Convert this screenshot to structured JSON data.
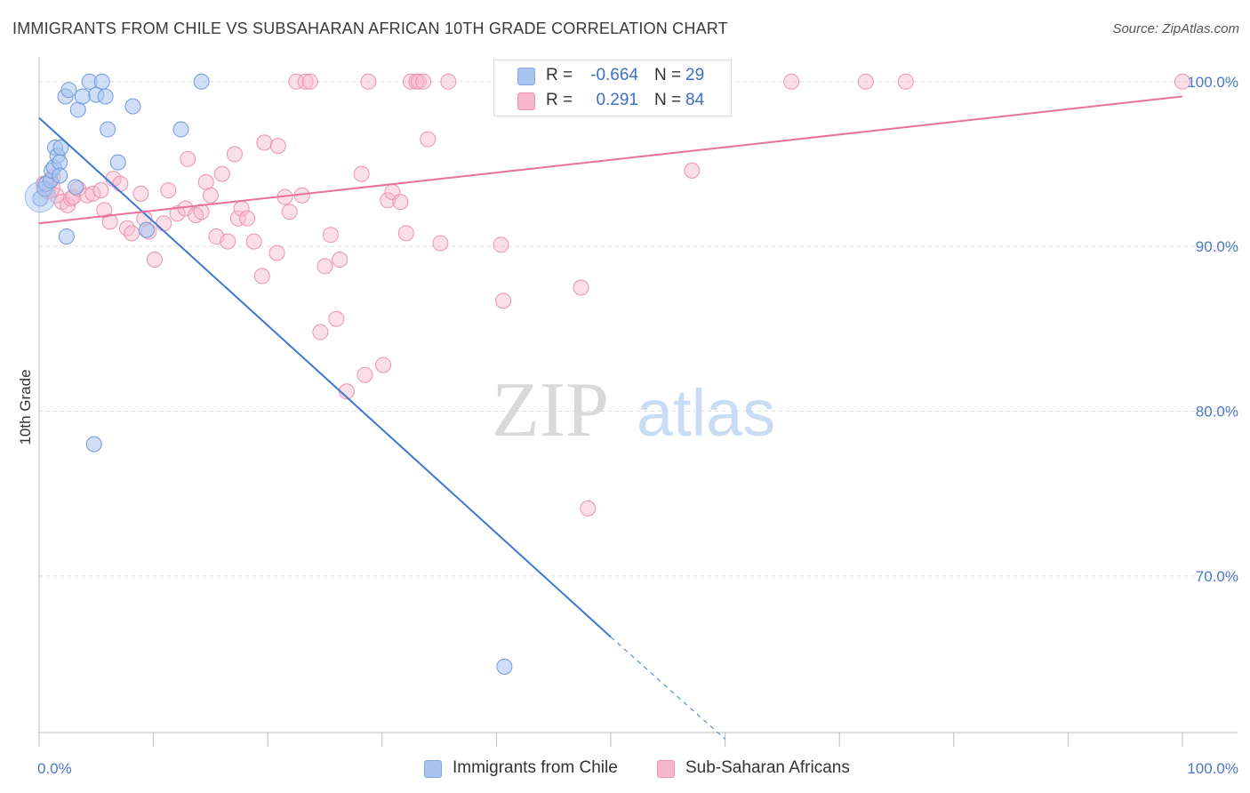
{
  "header": {
    "title": "IMMIGRANTS FROM CHILE VS SUBSAHARAN AFRICAN 10TH GRADE CORRELATION CHART",
    "source": "Source: ZipAtlas.com"
  },
  "watermark": {
    "part1": "ZIP",
    "part2": "atlas"
  },
  "legend": {
    "rows": [
      {
        "r_label": "R =",
        "r_value": "-0.664",
        "n_label": "N =",
        "n_value": "29",
        "color": "#a9c4f0"
      },
      {
        "r_label": "R =",
        "r_value": "0.291",
        "n_label": "N =",
        "n_value": "84",
        "color": "#f7b7cb"
      }
    ]
  },
  "bottom_legend": {
    "items": [
      {
        "label": "Immigrants from Chile",
        "color": "#a9c4f0"
      },
      {
        "label": "Sub-Saharan Africans",
        "color": "#f7b7cb"
      }
    ]
  },
  "colors": {
    "blue_line": "#3a78d4",
    "pink_line": "#e8709a",
    "blue_fill": "#a9c4f0",
    "pink_fill": "#f7b7cb",
    "axis_text": "#4a78c8"
  },
  "chart_data": {
    "type": "scatter",
    "title": "IMMIGRANTS FROM CHILE VS SUBSAHARAN AFRICAN 10TH GRADE CORRELATION CHART",
    "xlabel": "",
    "ylabel": "10th Grade",
    "xlim": [
      0,
      100
    ],
    "ylim": [
      60.5,
      101.5
    ],
    "x_ticks": [
      "0.0%",
      "100.0%"
    ],
    "y_ticks": [
      {
        "value": 100,
        "label": "100.0%"
      },
      {
        "value": 90,
        "label": "90.0%"
      },
      {
        "value": 80,
        "label": "80.0%"
      },
      {
        "value": 70,
        "label": "70.0%"
      }
    ],
    "grid": true,
    "series": [
      {
        "name": "Immigrants from Chile",
        "color": "#a9c4f0",
        "points": [
          [
            0.1,
            92.9
          ],
          [
            0.5,
            93.5
          ],
          [
            0.6,
            93.8
          ],
          [
            1.0,
            94.0
          ],
          [
            1.1,
            94.6
          ],
          [
            1.3,
            94.8
          ],
          [
            1.4,
            96.0
          ],
          [
            1.6,
            95.5
          ],
          [
            1.8,
            95.1
          ],
          [
            1.8,
            94.3
          ],
          [
            1.9,
            96.0
          ],
          [
            2.3,
            99.1
          ],
          [
            2.4,
            90.6
          ],
          [
            2.6,
            99.5
          ],
          [
            3.2,
            93.6
          ],
          [
            3.4,
            98.3
          ],
          [
            3.8,
            99.1
          ],
          [
            4.4,
            100.0
          ],
          [
            4.8,
            78.0
          ],
          [
            5.0,
            99.2
          ],
          [
            5.5,
            100.0
          ],
          [
            5.8,
            99.1
          ],
          [
            6.0,
            97.1
          ],
          [
            6.9,
            95.1
          ],
          [
            8.2,
            98.5
          ],
          [
            9.4,
            91.0
          ],
          [
            12.4,
            97.1
          ],
          [
            14.2,
            100.0
          ],
          [
            40.7,
            64.5
          ]
        ],
        "trend": {
          "x": [
            0,
            50
          ],
          "y": [
            97.8,
            66.3
          ],
          "dashed_to": [
            60,
            60.1
          ]
        }
      },
      {
        "name": "Sub-Saharan Africans",
        "color": "#f7b7cb",
        "points": [
          [
            0.4,
            93.8
          ],
          [
            0.8,
            93.5
          ],
          [
            1.2,
            94.2
          ],
          [
            1.5,
            93.1
          ],
          [
            2.0,
            92.7
          ],
          [
            2.5,
            92.5
          ],
          [
            2.8,
            92.9
          ],
          [
            3.0,
            93.0
          ],
          [
            3.4,
            93.5
          ],
          [
            4.2,
            93.1
          ],
          [
            4.7,
            93.2
          ],
          [
            5.4,
            93.4
          ],
          [
            5.7,
            92.2
          ],
          [
            6.2,
            91.5
          ],
          [
            6.5,
            94.1
          ],
          [
            7.1,
            93.8
          ],
          [
            7.7,
            91.1
          ],
          [
            8.1,
            90.8
          ],
          [
            8.9,
            93.2
          ],
          [
            9.2,
            91.7
          ],
          [
            9.6,
            90.9
          ],
          [
            10.1,
            89.2
          ],
          [
            10.9,
            91.4
          ],
          [
            11.3,
            93.4
          ],
          [
            12.1,
            92.0
          ],
          [
            12.8,
            92.3
          ],
          [
            13.0,
            95.3
          ],
          [
            13.7,
            91.9
          ],
          [
            14.2,
            92.1
          ],
          [
            14.6,
            93.9
          ],
          [
            15.0,
            93.1
          ],
          [
            15.5,
            90.6
          ],
          [
            16.0,
            94.4
          ],
          [
            16.5,
            90.3
          ],
          [
            17.1,
            95.6
          ],
          [
            17.4,
            91.7
          ],
          [
            17.7,
            92.3
          ],
          [
            18.2,
            91.7
          ],
          [
            18.8,
            90.3
          ],
          [
            19.5,
            88.2
          ],
          [
            19.7,
            96.3
          ],
          [
            20.8,
            89.6
          ],
          [
            20.9,
            96.1
          ],
          [
            21.5,
            93.0
          ],
          [
            21.9,
            92.1
          ],
          [
            22.5,
            100.0
          ],
          [
            23.0,
            93.1
          ],
          [
            23.3,
            100.0
          ],
          [
            23.7,
            100.0
          ],
          [
            24.6,
            84.8
          ],
          [
            25.0,
            88.8
          ],
          [
            25.5,
            90.7
          ],
          [
            26.0,
            85.6
          ],
          [
            26.3,
            89.2
          ],
          [
            26.9,
            81.2
          ],
          [
            28.2,
            94.4
          ],
          [
            28.5,
            82.2
          ],
          [
            28.8,
            100.0
          ],
          [
            30.1,
            82.8
          ],
          [
            30.5,
            92.8
          ],
          [
            30.9,
            93.3
          ],
          [
            31.6,
            92.7
          ],
          [
            32.1,
            90.8
          ],
          [
            32.5,
            100.0
          ],
          [
            33.0,
            100.0
          ],
          [
            33.2,
            100.0
          ],
          [
            33.6,
            100.0
          ],
          [
            34.0,
            96.5
          ],
          [
            35.1,
            90.2
          ],
          [
            35.8,
            100.0
          ],
          [
            40.4,
            90.1
          ],
          [
            40.6,
            86.7
          ],
          [
            42.3,
            99.2
          ],
          [
            45.6,
            100.0
          ],
          [
            47.4,
            87.5
          ],
          [
            48.0,
            74.1
          ],
          [
            52.5,
            100.0
          ],
          [
            55.2,
            99.0
          ],
          [
            56.2,
            100.0
          ],
          [
            57.1,
            94.6
          ],
          [
            65.8,
            100.0
          ],
          [
            72.3,
            100.0
          ],
          [
            75.8,
            100.0
          ],
          [
            100.0,
            100.0
          ]
        ],
        "trend": {
          "x": [
            0,
            100
          ],
          "y": [
            91.4,
            99.1
          ]
        }
      }
    ]
  }
}
